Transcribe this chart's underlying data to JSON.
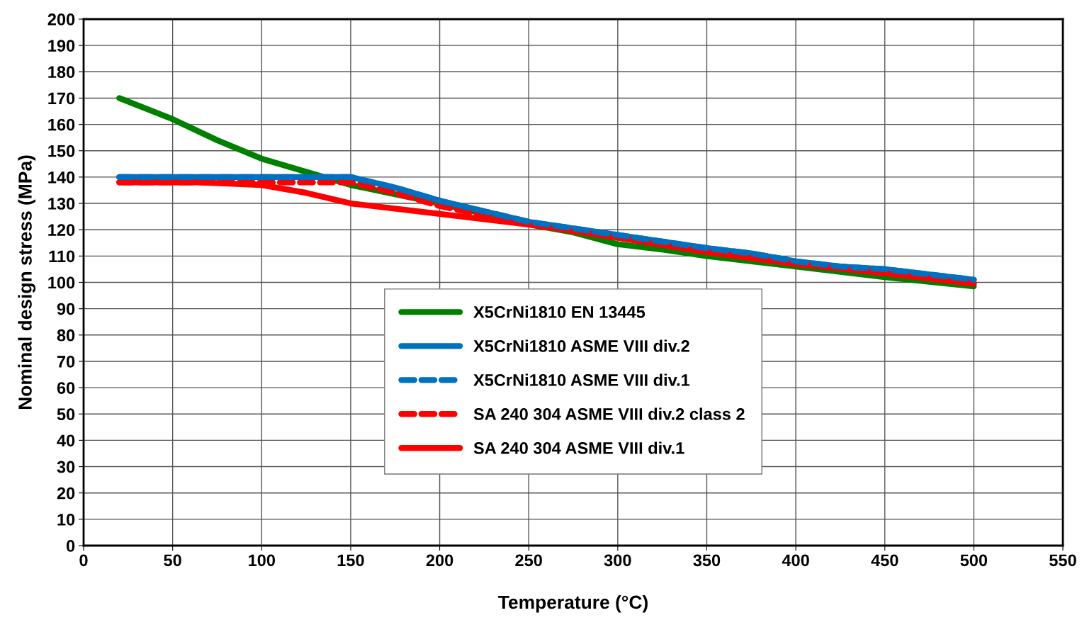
{
  "chart_data": {
    "type": "line",
    "xlabel": "Temperature (°C)",
    "ylabel": "Nominal design stress (MPa)",
    "xlim": [
      0,
      550
    ],
    "xticks": [
      0,
      50,
      100,
      150,
      200,
      250,
      300,
      350,
      400,
      450,
      500,
      550
    ],
    "ylim": [
      0,
      200
    ],
    "yticks": [
      0,
      10,
      20,
      30,
      40,
      50,
      60,
      70,
      80,
      90,
      100,
      110,
      120,
      130,
      140,
      150,
      160,
      170,
      180,
      190,
      200
    ],
    "grid": true,
    "legend": "bottom",
    "marker": "none",
    "series": [
      {
        "name": "X5CrNi1810 EN 13445",
        "color": "#008000",
        "line_style": "solid",
        "x": [
          20,
          50,
          75,
          100,
          125,
          150,
          175,
          200,
          250,
          275,
          300,
          325,
          350,
          400,
          450,
          500
        ],
        "values": [
          170,
          162,
          154,
          147,
          142,
          137,
          133.5,
          130,
          122,
          119,
          114.5,
          112.5,
          110,
          106,
          102,
          98.5
        ]
      },
      {
        "name": "X5CrNi1810 ASME VIII div.2",
        "color": "#0070c0",
        "line_style": "solid",
        "x": [
          20,
          150,
          175,
          200,
          225,
          250,
          275,
          300,
          325,
          350,
          375,
          400,
          425,
          450,
          475,
          500
        ],
        "values": [
          140,
          140,
          136,
          131,
          127,
          123,
          120.5,
          118,
          115.5,
          113,
          111,
          108,
          106,
          105,
          103,
          101
        ]
      },
      {
        "name": "X5CrNi1810 ASME VIII div.1",
        "color": "#0070c0",
        "line_style": "dashed",
        "x": [
          20,
          150,
          175,
          200,
          225,
          250,
          275,
          300,
          325,
          350,
          375,
          400,
          425,
          450,
          475,
          500
        ],
        "values": [
          140,
          140,
          136,
          131,
          127,
          123,
          120.5,
          118,
          115.5,
          113,
          111,
          108,
          106,
          105,
          103,
          101
        ]
      },
      {
        "name": "SA 240 304 ASME VIII div.2 class 2",
        "color": "#ff0000",
        "line_style": "dashed",
        "x": [
          20,
          150,
          175,
          200,
          225,
          250,
          275,
          300,
          350,
          400,
          450,
          500
        ],
        "values": [
          138,
          138,
          134,
          129,
          125.5,
          122,
          119.5,
          117,
          112,
          107,
          103.5,
          99.5
        ]
      },
      {
        "name": "SA 240 304 ASME VIII div.1",
        "color": "#ff0000",
        "line_style": "solid",
        "x": [
          20,
          65,
          100,
          125,
          150,
          200,
          250,
          300,
          350,
          400,
          450,
          500
        ],
        "values": [
          138,
          138,
          137,
          134,
          130,
          126,
          122,
          117,
          111.5,
          107,
          103.5,
          99.5
        ]
      }
    ]
  }
}
